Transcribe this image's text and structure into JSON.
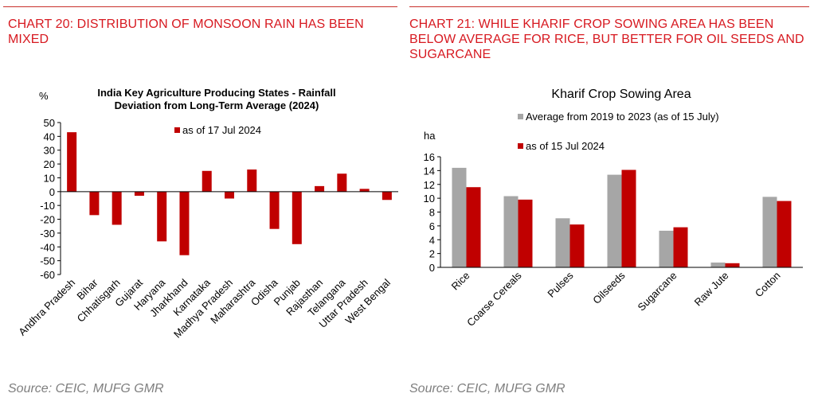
{
  "left": {
    "heading": "CHART 20: DISTRIBUTION OF MONSOON RAIN HAS BEEN MIXED",
    "source": "Source: CEIC, MUFG GMR",
    "chart_data": {
      "type": "bar",
      "title_line1": "India Key Agriculture Producing States - Rainfall",
      "title_line2": "Deviation from Long-Term Average (2024)",
      "ylabel": "%",
      "ylim": [
        -60,
        50
      ],
      "yticks": [
        50,
        40,
        30,
        20,
        10,
        0,
        -10,
        -20,
        -30,
        -40,
        -50,
        -60
      ],
      "legend_position": "top",
      "categories": [
        "Andhra Pradesh",
        "Bihar",
        "Chhatisgarh",
        "Gujarat",
        "Haryana",
        "Jharkhand",
        "Karnataka",
        "Madhya Pradesh",
        "Maharashtra",
        "Odisha",
        "Punjab",
        "Rajasthan",
        "Telangana",
        "Uttar Pradesh",
        "West Bengal"
      ],
      "series": [
        {
          "name": "as of 17 Jul 2024",
          "color": "#c00000",
          "values": [
            43,
            -17,
            -24,
            -3,
            -36,
            -46,
            15,
            -5,
            16,
            -27,
            -38,
            4,
            13,
            2,
            -6
          ]
        }
      ]
    }
  },
  "right": {
    "heading": "CHART 21: WHILE KHARIF CROP SOWING AREA HAS BEEN BELOW AVERAGE FOR RICE, BUT BETTER FOR OIL SEEDS AND SUGARCANE",
    "source": "Source: CEIC, MUFG GMR",
    "chart_data": {
      "type": "bar",
      "title": "Kharif Crop Sowing Area",
      "ylabel": "ha",
      "ylim": [
        0,
        16
      ],
      "yticks": [
        16,
        14,
        12,
        10,
        8,
        6,
        4,
        2,
        0
      ],
      "legend_position": "top",
      "categories": [
        "Rice",
        "Coarse Cereals",
        "Pulses",
        "Oilseeds",
        "Sugarcane",
        "Raw Jute",
        "Cotton"
      ],
      "series": [
        {
          "name": "Average from 2019 to 2023 (as of 15 July)",
          "color": "#a6a6a6",
          "values": [
            14.4,
            10.3,
            7.1,
            13.4,
            5.3,
            0.7,
            10.2
          ]
        },
        {
          "name": "as of 15 Jul 2024",
          "color": "#c00000",
          "values": [
            11.6,
            9.8,
            6.2,
            14.1,
            5.8,
            0.6,
            9.6
          ]
        }
      ]
    }
  }
}
